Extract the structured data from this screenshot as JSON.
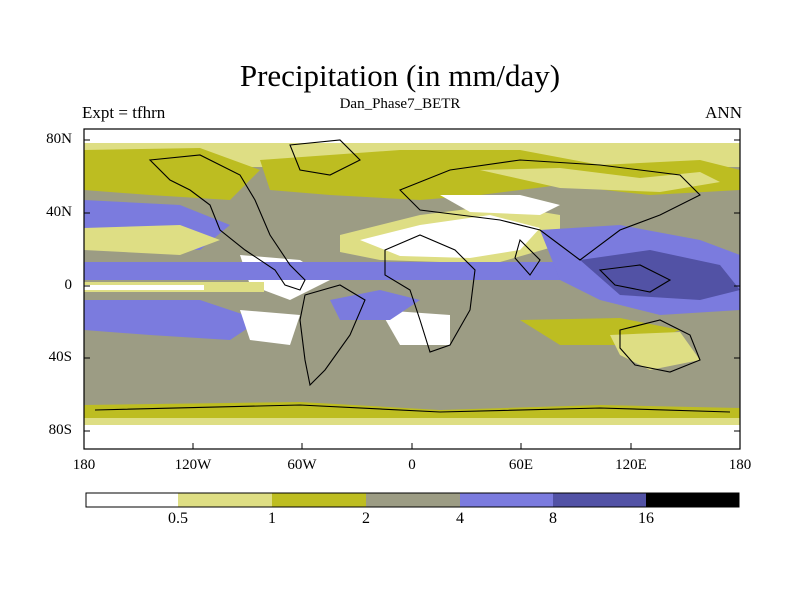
{
  "map": {
    "title": "Precipitation (in mm/day)",
    "subtitle": "Dan_Phase7_BETR",
    "left_label": "Expt = tfhrn",
    "right_label": "ANN",
    "lat_ticks": [
      "80N",
      "40N",
      "0",
      "40S",
      "80S"
    ],
    "lon_ticks": [
      "180",
      "120W",
      "60W",
      "0",
      "60E",
      "120E",
      "180"
    ]
  },
  "colorbar": {
    "levels": [
      "0.5",
      "1",
      "2",
      "4",
      "8",
      "16"
    ],
    "colors": [
      "#ffffff",
      "#dede84",
      "#bdbd21",
      "#9c9c84",
      "#7b7bde",
      "#5252a5",
      "#000000"
    ]
  }
}
